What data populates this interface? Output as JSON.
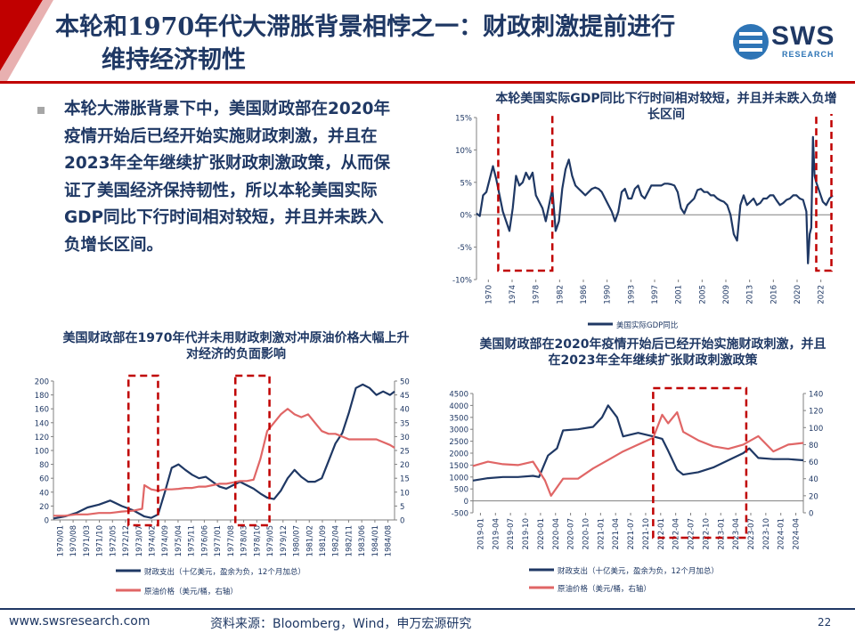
{
  "header": {
    "title_line1": "本轮和1970年代大滞胀背景相悖之一：财政刺激提前进行",
    "title_line2": "维持经济韧性",
    "logo_text": "SWS",
    "logo_sub": "RESEARCH"
  },
  "bullet": {
    "text": "本轮大滞胀背景下中，美国财政部在2020年疫情开始后已经开始实施财政刺激，并且在2023年全年继续扩张财政刺激政策，从而保证了美国经济保持韧性，所以本轮美国实际GDP同比下行时间相对较短，并且并未跌入负增长区间。"
  },
  "footer": {
    "url": "www.swsresearch.com",
    "source": "资料来源：Bloomberg，Wind，申万宏源研究",
    "page": "22"
  },
  "colors": {
    "navy": "#1f3864",
    "red": "#e06666",
    "highlight": "#c00000"
  },
  "chart_data": [
    {
      "id": "gdp",
      "type": "line",
      "title": "本轮美国实际GDP同比下行时间相对较短，并且并未跌入负增长区间",
      "ylim": [
        -10,
        15
      ],
      "yticks": [
        "-10%",
        "-5%",
        "0%",
        "5%",
        "10%",
        "15%"
      ],
      "xticks": [
        "1970",
        "1974",
        "1978",
        "1982",
        "1986",
        "1990",
        "1993",
        "1997",
        "2001",
        "2005",
        "2009",
        "2013",
        "2016",
        "2020",
        "2022"
      ],
      "xlim": [
        1970,
        2024
      ],
      "series": [
        {
          "name": "美国实际GDP同比",
          "color": "#1f3864",
          "x": [
            1970,
            1970.5,
            1971,
            1971.5,
            1972,
            1972.5,
            1973,
            1973.5,
            1974,
            1974.5,
            1975,
            1975.5,
            1976,
            1976.5,
            1977,
            1977.5,
            1978,
            1978.5,
            1979,
            1979.5,
            1980,
            1980.5,
            1981,
            1981.5,
            1982,
            1982.5,
            1983,
            1983.5,
            1984,
            1984.5,
            1985,
            1985.5,
            1986,
            1986.5,
            1987,
            1987.5,
            1988,
            1988.5,
            1989,
            1989.5,
            1990,
            1990.5,
            1991,
            1991.5,
            1992,
            1992.5,
            1993,
            1993.5,
            1994,
            1994.5,
            1995,
            1995.5,
            1996,
            1996.5,
            1997,
            1997.5,
            1998,
            1998.5,
            1999,
            1999.5,
            2000,
            2000.5,
            2001,
            2001.5,
            2002,
            2002.5,
            2003,
            2003.5,
            2004,
            2004.5,
            2005,
            2005.5,
            2006,
            2006.5,
            2007,
            2007.5,
            2008,
            2008.5,
            2009,
            2009.5,
            2010,
            2010.5,
            2011,
            2011.5,
            2012,
            2012.5,
            2013,
            2013.5,
            2014,
            2014.5,
            2015,
            2015.5,
            2016,
            2016.5,
            2017,
            2017.5,
            2018,
            2018.5,
            2019,
            2019.5,
            2020,
            2020.25,
            2020.5,
            2020.75,
            2021,
            2021.25,
            2021.5,
            2022,
            2022.5,
            2023,
            2023.5,
            2024
          ],
          "y": [
            0.2,
            -0.2,
            3,
            3.5,
            5.5,
            7.5,
            5.5,
            3,
            0.5,
            -1,
            -2.5,
            1,
            6,
            4.5,
            5,
            6.5,
            5.5,
            6.5,
            3,
            2,
            1,
            -1,
            1.5,
            4,
            -2.5,
            -1,
            4,
            7,
            8.5,
            6,
            4.5,
            4,
            3.5,
            3,
            3.5,
            4,
            4.2,
            4,
            3.5,
            2.5,
            1.5,
            0.5,
            -1,
            0.5,
            3.5,
            4,
            2.5,
            2.5,
            4,
            4.5,
            3,
            2.5,
            3.5,
            4.5,
            4.5,
            4.5,
            4.5,
            4.8,
            4.8,
            4.7,
            4.5,
            3.5,
            1,
            0.2,
            1.5,
            2,
            2.5,
            3.8,
            4,
            3.5,
            3.5,
            3,
            3,
            2.5,
            2.2,
            2,
            1.5,
            0,
            -3,
            -4,
            1.5,
            3,
            1.5,
            2,
            2.5,
            1.5,
            1.8,
            2.5,
            2.5,
            3,
            3,
            2.2,
            1.5,
            1.8,
            2.3,
            2.5,
            3,
            3,
            2.5,
            2.3,
            0.5,
            -7.5,
            -3,
            -2,
            12,
            6,
            5,
            3.5,
            2,
            1.5,
            2.5,
            3
          ]
        }
      ],
      "highlights": [
        [
          1973.3,
          1981.5
        ],
        [
          2021.5,
          2023.8
        ]
      ]
    },
    {
      "id": "1970s",
      "type": "line",
      "title": "美国财政部在1970年代并未用财政刺激对冲原油价格大幅上升对经济的负面影响",
      "ylim_left": [
        0,
        200
      ],
      "ylim_right": [
        0,
        50
      ],
      "yticks_left": [
        "0",
        "20",
        "40",
        "60",
        "80",
        "100",
        "120",
        "140",
        "160",
        "180",
        "200"
      ],
      "yticks_right": [
        "0",
        "5",
        "10",
        "15",
        "20",
        "25",
        "30",
        "35",
        "40",
        "45",
        "50"
      ],
      "xticks": [
        "1970/01",
        "1970/08",
        "1971/03",
        "1971/10",
        "1972/05",
        "1972/12",
        "1973/07",
        "1974/02",
        "1974/09",
        "1975/04",
        "1975/11",
        "1976/06",
        "1977/01",
        "1977/08",
        "1978/03",
        "1978/10",
        "1979/05",
        "1979/12",
        "1980/07",
        "1981/02",
        "1981/09",
        "1982/04",
        "1982/11",
        "1983/06",
        "1984/01",
        "1984/08"
      ],
      "xlim": [
        1970.0,
        1985.0
      ],
      "series": [
        {
          "name": "财政支出（十亿美元，盈余为负，12个月加总）",
          "color": "#1f3864",
          "axis": "left",
          "x": [
            1970,
            1970.5,
            1971,
            1971.5,
            1972,
            1972.5,
            1973,
            1973.5,
            1974,
            1974.3,
            1974.6,
            1974.9,
            1975.2,
            1975.5,
            1975.8,
            1976.1,
            1976.4,
            1976.7,
            1977,
            1977.3,
            1977.6,
            1977.9,
            1978.2,
            1978.5,
            1978.8,
            1979.1,
            1979.4,
            1979.7,
            1980,
            1980.3,
            1980.6,
            1980.9,
            1981.2,
            1981.5,
            1981.8,
            1982.1,
            1982.4,
            1982.7,
            1983,
            1983.3,
            1983.6,
            1983.9,
            1984.2,
            1984.5,
            1984.8,
            1985
          ],
          "y": [
            2,
            5,
            10,
            18,
            22,
            28,
            20,
            14,
            5,
            3,
            8,
            40,
            75,
            80,
            72,
            65,
            60,
            62,
            55,
            48,
            45,
            50,
            55,
            50,
            45,
            38,
            32,
            30,
            42,
            60,
            72,
            62,
            55,
            55,
            60,
            85,
            110,
            125,
            155,
            190,
            195,
            190,
            180,
            185,
            180,
            185
          ]
        },
        {
          "name": "原油价格（美元/桶，右轴）",
          "color": "#e06666",
          "axis": "right",
          "x": [
            1970,
            1970.5,
            1971,
            1971.5,
            1972,
            1972.5,
            1973,
            1973.5,
            1973.9,
            1974,
            1974.3,
            1974.6,
            1974.9,
            1975.2,
            1975.5,
            1975.8,
            1976.1,
            1976.4,
            1976.7,
            1977,
            1977.3,
            1977.6,
            1977.9,
            1978.2,
            1978.5,
            1978.8,
            1979.1,
            1979.4,
            1979.7,
            1980,
            1980.3,
            1980.6,
            1980.9,
            1981.2,
            1981.5,
            1981.8,
            1982.1,
            1982.4,
            1982.7,
            1983,
            1983.3,
            1983.6,
            1983.9,
            1984.2,
            1984.5,
            1984.8,
            1985
          ],
          "y": [
            1.5,
            1.5,
            2,
            2,
            2.5,
            2.5,
            3,
            3.3,
            4,
            12.5,
            11,
            10.5,
            11,
            11,
            11.2,
            11.5,
            11.5,
            12,
            12,
            12.5,
            13,
            13,
            13.5,
            14,
            14,
            14.5,
            22,
            32,
            35,
            38,
            40,
            38,
            37,
            38,
            35,
            32,
            31,
            31,
            30,
            29,
            29,
            29,
            29,
            29,
            28,
            27,
            26
          ]
        }
      ],
      "highlights": [
        [
          1973.3,
          1974.6
        ],
        [
          1978.0,
          1979.5
        ]
      ]
    },
    {
      "id": "2020s",
      "type": "line",
      "title": "美国财政部在2020年疫情开始后已经开始实施财政刺激，并且在2023年全年继续扩张财政刺激政策",
      "ylim_left": [
        -500,
        4500
      ],
      "ylim_right": [
        0,
        140
      ],
      "yticks_left": [
        "-500",
        "0",
        "500",
        "1000",
        "1500",
        "2000",
        "2500",
        "3000",
        "3500",
        "4000",
        "4500"
      ],
      "yticks_right": [
        "0",
        "20",
        "40",
        "60",
        "80",
        "100",
        "120",
        "140"
      ],
      "xticks": [
        "2019-01",
        "2019-04",
        "2019-07",
        "2019-10",
        "2020-01",
        "2020-04",
        "2020-07",
        "2020-10",
        "2021-01",
        "2021-04",
        "2021-07",
        "2021-10",
        "2022-01",
        "2022-04",
        "2022-07",
        "2022-10",
        "2023-01",
        "2023-04",
        "2023-07",
        "2023-10",
        "2024-01",
        "2024-04"
      ],
      "xlim": [
        2019.0,
        2024.5
      ],
      "series": [
        {
          "name": "财政支出（十亿美元，盈余为负，12个月加总）",
          "color": "#1f3864",
          "axis": "left",
          "x": [
            2019,
            2019.25,
            2019.5,
            2019.75,
            2020,
            2020.1,
            2020.25,
            2020.4,
            2020.5,
            2020.75,
            2021,
            2021.15,
            2021.25,
            2021.4,
            2021.5,
            2021.75,
            2022,
            2022.15,
            2022.25,
            2022.4,
            2022.5,
            2022.75,
            2023,
            2023.25,
            2023.5,
            2023.6,
            2023.75,
            2024,
            2024.25,
            2024.5
          ],
          "y": [
            850,
            950,
            1000,
            1000,
            1050,
            1000,
            1900,
            2200,
            2950,
            3000,
            3100,
            3500,
            4000,
            3500,
            2700,
            2850,
            2700,
            2600,
            2100,
            1300,
            1100,
            1200,
            1400,
            1700,
            2000,
            2200,
            1800,
            1750,
            1750,
            1700
          ]
        },
        {
          "name": "原油价格（美元/桶，右轴）",
          "color": "#e06666",
          "axis": "right",
          "x": [
            2019,
            2019.25,
            2019.5,
            2019.75,
            2020,
            2020.2,
            2020.3,
            2020.5,
            2020.75,
            2021,
            2021.25,
            2021.5,
            2021.75,
            2022,
            2022.15,
            2022.25,
            2022.4,
            2022.5,
            2022.75,
            2023,
            2023.25,
            2023.5,
            2023.75,
            2024,
            2024.25,
            2024.5
          ],
          "y": [
            55,
            60,
            57,
            56,
            60,
            38,
            20,
            40,
            40,
            52,
            62,
            72,
            80,
            88,
            115,
            105,
            118,
            95,
            85,
            78,
            75,
            80,
            90,
            72,
            80,
            82
          ]
        }
      ],
      "highlights": [
        [
          2022.0,
          2023.55
        ]
      ]
    }
  ]
}
